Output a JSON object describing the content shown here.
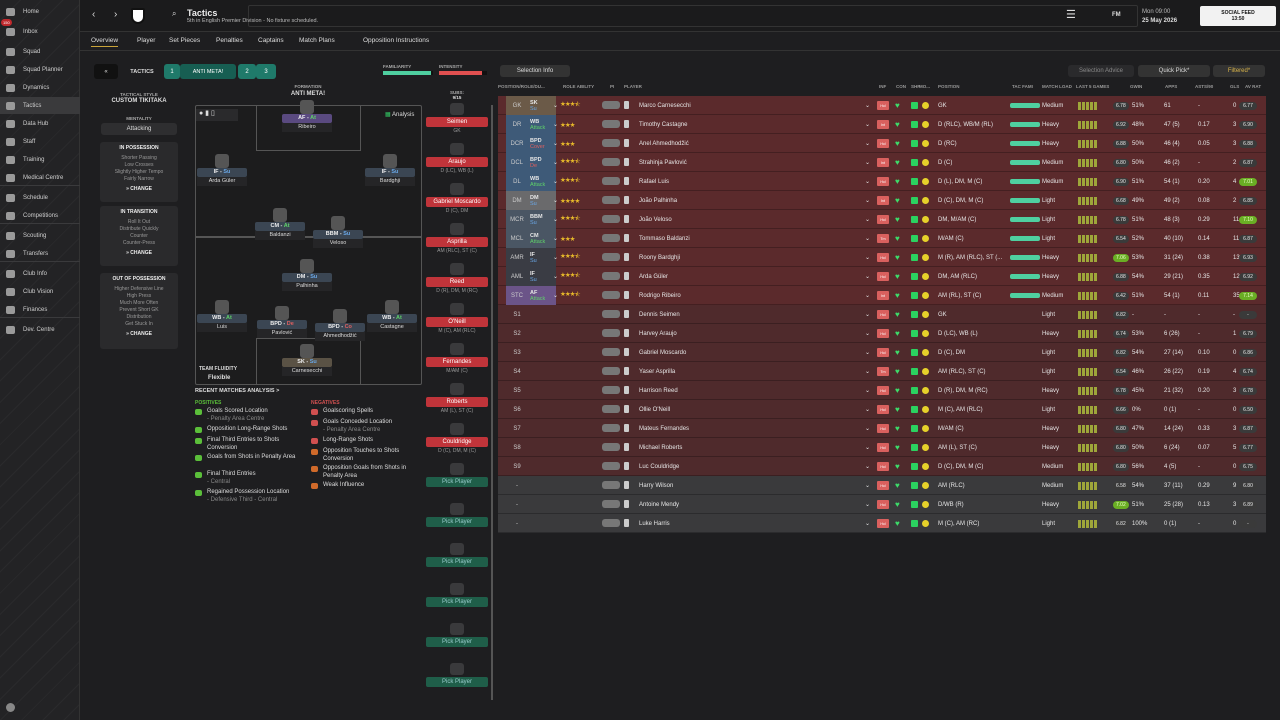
{
  "nav": [
    {
      "label": "Home",
      "icon": "home-icon"
    },
    {
      "label": "Inbox",
      "icon": "inbox-icon",
      "badge": "150"
    },
    {
      "label": "Squad",
      "icon": "shirt-icon"
    },
    {
      "label": "Squad Planner",
      "icon": "clipboard-icon"
    },
    {
      "label": "Dynamics",
      "icon": "dynamics-icon"
    },
    {
      "label": "Tactics",
      "icon": "tactics-icon",
      "selected": true
    },
    {
      "label": "Data Hub",
      "icon": "data-hub-icon"
    },
    {
      "label": "Staff",
      "icon": "staff-icon"
    },
    {
      "label": "Training",
      "icon": "training-icon"
    },
    {
      "label": "Medical Centre",
      "icon": "medical-icon"
    },
    {
      "label": "Schedule",
      "icon": "calendar-icon"
    },
    {
      "label": "Competitions",
      "icon": "trophy-icon"
    },
    {
      "label": "Scouting",
      "icon": "search-icon"
    },
    {
      "label": "Transfers",
      "icon": "transfers-icon"
    },
    {
      "label": "Club Info",
      "icon": "shield-icon"
    },
    {
      "label": "Club Vision",
      "icon": "briefcase-icon"
    },
    {
      "label": "Finances",
      "icon": "money-icon"
    },
    {
      "label": "Dev. Centre",
      "icon": "dev-centre-icon"
    }
  ],
  "header": {
    "title": "Tactics",
    "subtitle": "5th in English Premier Division - No fixture scheduled.",
    "fm": "FM",
    "date_time": "Mon 09:00",
    "date": "25 May 2026",
    "social_title": "SOCIAL FEED",
    "social_time": "13:50"
  },
  "tabs": [
    "Overview",
    "Player",
    "Set Pieces",
    "Penalties",
    "Captains",
    "Match Plans",
    "Opposition Instructions"
  ],
  "tactics_bar": {
    "label": "TACTICS",
    "slot1": "1",
    "tactic_name": "ANTI META!",
    "slot2": "2",
    "slot3": "3",
    "familiarity_label": "FAMILIARITY",
    "intensity_label": "INTENSITY",
    "familiarity": 0.95,
    "intensity": 0.9
  },
  "style": {
    "label": "TACTICAL STYLE",
    "value": "CUSTOM TIKITAKA",
    "mentality_label": "MENTALITY",
    "mentality": "Attacking"
  },
  "phases": [
    {
      "title": "IN POSSESSION",
      "items": [
        "Shorter Passing",
        "Low Crosses",
        "Slightly Higher Tempo",
        "Fairly Narrow"
      ]
    },
    {
      "title": "IN TRANSITION",
      "items": [
        "Roll It Out",
        "Distribute Quickly",
        "Counter",
        "Counter-Press"
      ]
    },
    {
      "title": "OUT OF POSSESSION",
      "items": [
        "Higher Defensive Line",
        "High Press",
        "Much More Often",
        "Prevent Short GK",
        "Distribution",
        "Get Stuck In"
      ]
    }
  ],
  "change_label": "CHANGE",
  "formation": {
    "label": "FORMATION",
    "name": "ANTI META!",
    "analysis": "Analysis",
    "fluidity_label": "TEAM FLUIDITY",
    "fluidity": "Flexible"
  },
  "pitch_players": [
    {
      "role": "AF",
      "duty": "At",
      "name": "Ribeiro"
    },
    {
      "role": "IF",
      "duty": "Su",
      "name": "Arda Güler"
    },
    {
      "role": "IF",
      "duty": "Su",
      "name": "Bardghji"
    },
    {
      "role": "CM",
      "duty": "At",
      "name": "Baldanzi"
    },
    {
      "role": "BBM",
      "duty": "Su",
      "name": "Veloso"
    },
    {
      "role": "DM",
      "duty": "Su",
      "name": "Palhinha"
    },
    {
      "role": "WB",
      "duty": "At",
      "name": "Luis"
    },
    {
      "role": "BPD",
      "duty": "De",
      "name": "Pavlović"
    },
    {
      "role": "BPD",
      "duty": "Co",
      "name": "Ahmedhodžić"
    },
    {
      "role": "WB",
      "duty": "At",
      "name": "Castagne"
    },
    {
      "role": "SK",
      "duty": "Su",
      "name": "Carnesecchi"
    }
  ],
  "subs": {
    "label": "SUBS:",
    "count": "9/15",
    "items": [
      {
        "name": "Seimen",
        "pos": "GK"
      },
      {
        "name": "Araujo",
        "pos": "D (LC), WB (L)"
      },
      {
        "name": "Gabriel Moscardo",
        "pos": "D (C), DM"
      },
      {
        "name": "Asprilla",
        "pos": "AM (RLC), ST (C)"
      },
      {
        "name": "Reed",
        "pos": "D (R), DM, M (RC)"
      },
      {
        "name": "O'Neill",
        "pos": "M (C), AM (RLC)"
      },
      {
        "name": "Fernandes",
        "pos": "M/AM (C)"
      },
      {
        "name": "Roberts",
        "pos": "AM (L), ST (C)"
      },
      {
        "name": "Couldridge",
        "pos": "D (C), DM, M (C)"
      },
      {
        "name": "Pick Player",
        "pos": ""
      },
      {
        "name": "Pick Player",
        "pos": ""
      },
      {
        "name": "Pick Player",
        "pos": ""
      },
      {
        "name": "Pick Player",
        "pos": ""
      },
      {
        "name": "Pick Player",
        "pos": ""
      },
      {
        "name": "Pick Player",
        "pos": ""
      }
    ]
  },
  "analysis": {
    "title": "RECENT MATCHES ANALYSIS >",
    "positives_label": "POSITIVES",
    "negatives_label": "NEGATIVES",
    "positives": [
      {
        "t": "Goals Scored Location",
        "s": "- Penalty Area Centre"
      },
      {
        "t": "Opposition Long-Range Shots",
        "s": ""
      },
      {
        "t": "Final Third Entries to Shots Conversion",
        "s": ""
      },
      {
        "t": "Goals from Shots in Penalty Area",
        "s": ""
      },
      {
        "t": "Final Third Entries",
        "s": "- Central"
      },
      {
        "t": "Regained Possession Location",
        "s": "- Defensive Third - Central"
      }
    ],
    "negatives": [
      {
        "t": "Goalscoring Spells",
        "s": ""
      },
      {
        "t": "Goals Conceded Location",
        "s": "- Penalty Area Centre"
      },
      {
        "t": "Long-Range Shots",
        "s": ""
      },
      {
        "t": "Opposition Touches to Shots Conversion",
        "s": ""
      },
      {
        "t": "Opposition Goals from Shots in Penalty Area",
        "s": ""
      },
      {
        "t": "Weak Influence",
        "s": ""
      }
    ]
  },
  "table_controls": {
    "selection_info": "Selection Info",
    "selection_advice": "Selection Advice",
    "quick_pick": "Quick Pick*",
    "filtered": "Filtered*"
  },
  "columns": [
    "POSITION/ROLE/DU...",
    "ROLE ABILITY",
    "PI",
    "PLAYER",
    "INF",
    "CON",
    "SHP",
    "MO...",
    "POSITION",
    "TAC FAMI",
    "MATCH LOAD",
    "LAST 5 GAMES",
    "GWIN",
    "APPS",
    "ASTS/90",
    "GLS",
    "AV RAT"
  ],
  "rows": [
    [
      "GK",
      "SK",
      "Su",
      3.5,
      "Marco Carnesecchi",
      "Hol",
      "GK",
      "Medium",
      "6.78",
      "51%",
      "61",
      "-",
      "0",
      "6.77"
    ],
    [
      "DR",
      "WB",
      "Attack",
      3,
      "Timothy Castagne",
      "Int",
      "D (RLC), WB/M (RL)",
      "Heavy",
      "6.92",
      "48%",
      "47 (5)",
      "0.17",
      "3",
      "6.90"
    ],
    [
      "DCR",
      "BPD",
      "Cover",
      3,
      "Anel Ahmedhodžić",
      "Hol",
      "D (RC)",
      "Heavy",
      "6.88",
      "50%",
      "46 (4)",
      "0.05",
      "3",
      "6.88"
    ],
    [
      "DCL",
      "BPD",
      "De",
      3.5,
      "Strahinja Pavlović",
      "Int",
      "D (C)",
      "Medium",
      "6.80",
      "50%",
      "46 (2)",
      "-",
      "2",
      "6.87"
    ],
    [
      "DL",
      "WB",
      "Attack",
      3.5,
      "Rafael Luis",
      "Hol",
      "D (L), DM, M (C)",
      "Medium",
      "6.90",
      "51%",
      "54 (1)",
      "0.20",
      "4",
      "7.01"
    ],
    [
      "DM",
      "DM",
      "Su",
      4,
      "João Palhinha",
      "Int",
      "D (C), DM, M (C)",
      "Light",
      "6.68",
      "49%",
      "49 (2)",
      "0.08",
      "2",
      "6.85"
    ],
    [
      "MCR",
      "BBM",
      "Su",
      3.5,
      "João Veloso",
      "Hol",
      "DM, M/AM (C)",
      "Light",
      "6.78",
      "51%",
      "48 (3)",
      "0.29",
      "11",
      "7.10"
    ],
    [
      "MCL",
      "CM",
      "Attack",
      3,
      "Tommaso Baldanzi",
      "Trn",
      "M/AM (C)",
      "Light",
      "6.54",
      "52%",
      "40 (10)",
      "0.14",
      "11",
      "6.87"
    ],
    [
      "AMR",
      "IF",
      "Su",
      3.5,
      "Roony Bardghji",
      "Hol",
      "M (R), AM (RLC), ST (...",
      "Heavy",
      "7.06",
      "53%",
      "31 (24)",
      "0.38",
      "13",
      "6.93"
    ],
    [
      "AML",
      "IF",
      "Su",
      3.5,
      "Arda Güler",
      "Hol",
      "DM, AM (RLC)",
      "Heavy",
      "6.88",
      "54%",
      "29 (21)",
      "0.35",
      "12",
      "6.92"
    ],
    [
      "STC",
      "AF",
      "Attack",
      3.5,
      "Rodrigo Ribeiro",
      "Int",
      "AM (RL), ST (C)",
      "Medium",
      "6.42",
      "51%",
      "54 (1)",
      "0.11",
      "35",
      "7.14"
    ],
    [
      "S1",
      "",
      "",
      0,
      "Dennis Seimen",
      "Hol",
      "GK",
      "Light",
      "6.82",
      "-",
      "-",
      "-",
      "-",
      "-"
    ],
    [
      "S2",
      "",
      "",
      0,
      "Harvey Araujo",
      "Hol",
      "D (LC), WB (L)",
      "Heavy",
      "6.74",
      "53%",
      "6 (26)",
      "-",
      "1",
      "6.79"
    ],
    [
      "S3",
      "",
      "",
      0,
      "Gabriel Moscardo",
      "Hol",
      "D (C), DM",
      "Light",
      "6.82",
      "54%",
      "27 (14)",
      "0.10",
      "0",
      "6.86"
    ],
    [
      "S4",
      "",
      "",
      0,
      "Yaser Asprilla",
      "Trn",
      "AM (RLC), ST (C)",
      "Light",
      "6.54",
      "46%",
      "26 (22)",
      "0.19",
      "4",
      "6.74"
    ],
    [
      "S5",
      "",
      "",
      0,
      "Harrison Reed",
      "Hol",
      "D (R), DM, M (RC)",
      "Heavy",
      "6.78",
      "45%",
      "21 (32)",
      "0.20",
      "3",
      "6.78"
    ],
    [
      "S6",
      "",
      "",
      0,
      "Ollie O'Neill",
      "Hol",
      "M (C), AM (RLC)",
      "Light",
      "6.66",
      "0%",
      "0 (1)",
      "-",
      "0",
      "6.50"
    ],
    [
      "S7",
      "",
      "",
      0,
      "Mateus Fernandes",
      "Hol",
      "M/AM (C)",
      "Heavy",
      "6.80",
      "47%",
      "14 (24)",
      "0.33",
      "3",
      "6.87"
    ],
    [
      "S8",
      "",
      "",
      0,
      "Michael Roberts",
      "Hol",
      "AM (L), ST (C)",
      "Heavy",
      "6.80",
      "50%",
      "6 (24)",
      "0.07",
      "5",
      "6.77"
    ],
    [
      "S9",
      "",
      "",
      0,
      "Luc Couldridge",
      "Hol",
      "D (C), DM, M (C)",
      "Medium",
      "6.80",
      "56%",
      "4 (5)",
      "-",
      "0",
      "6.75"
    ],
    [
      "-",
      "",
      "",
      0,
      "Harry Wilson",
      "Hol",
      "AM (RLC)",
      "Medium",
      "6.58",
      "54%",
      "37 (11)",
      "0.29",
      "9",
      "6.80"
    ],
    [
      "-",
      "",
      "",
      0,
      "Antoine Mendy",
      "Hol",
      "D/WB (R)",
      "Heavy",
      "7.02",
      "51%",
      "25 (28)",
      "0.13",
      "3",
      "6.89"
    ],
    [
      "-",
      "",
      "",
      0,
      "Luke Harris",
      "Hol",
      "M (C), AM (RC)",
      "Light",
      "6.82",
      "100%",
      "0 (1)",
      "-",
      "0",
      "-"
    ]
  ],
  "colors": {
    "starter_row": "#5b2a2c",
    "sub_row": "#4f2a2c",
    "reserve_row": "#3a3a3c",
    "accent_teal": "#1f7a6a",
    "sub_red": "#c0343a",
    "rating_green": "#6aae24"
  }
}
